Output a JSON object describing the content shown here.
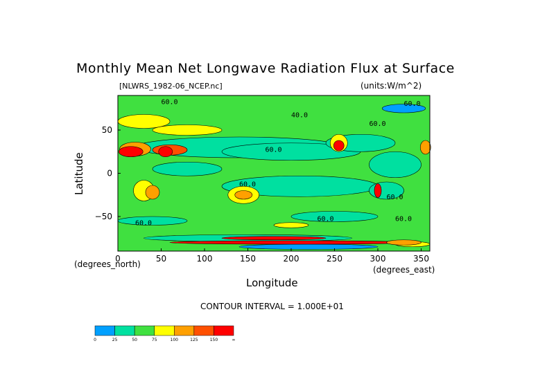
{
  "title": "Monthly Mean Net Longwave Radiation Flux at Surface",
  "source_label": "[NLWRS_1982-06_NCEP.nc]",
  "units_label": "(units:W/m^2)",
  "x_axis_label": "Longitude",
  "y_axis_label": "Latitude",
  "x_unit_left": "(degrees_north)",
  "x_unit_right": "(degrees_east)",
  "contour_interval_text": "CONTOUR INTERVAL = 1.000E+01",
  "chart_data": {
    "type": "heatmap",
    "title": "Monthly Mean Net Longwave Radiation Flux at Surface",
    "xlabel": "Longitude",
    "ylabel": "Latitude",
    "xlim": [
      0,
      360
    ],
    "ylim": [
      -90,
      90
    ],
    "x_ticks": [
      0,
      50,
      100,
      150,
      200,
      250,
      300,
      350
    ],
    "y_ticks": [
      -50,
      0,
      50
    ],
    "contour_labels": [
      "60.0",
      "40.0",
      "60.0",
      "60.0",
      "60.0",
      "60.0",
      "60.0",
      "60.0",
      "60.0",
      "60.0"
    ],
    "colorbar": {
      "ticks": [
        "0",
        "25",
        "50",
        "75",
        "100",
        "125",
        "150",
        "∞"
      ],
      "colors": [
        "#00a0ff",
        "#00e0a0",
        "#40e040",
        "#ffff00",
        "#ffa000",
        "#ff5000",
        "#ff0000"
      ]
    },
    "grid": false
  }
}
